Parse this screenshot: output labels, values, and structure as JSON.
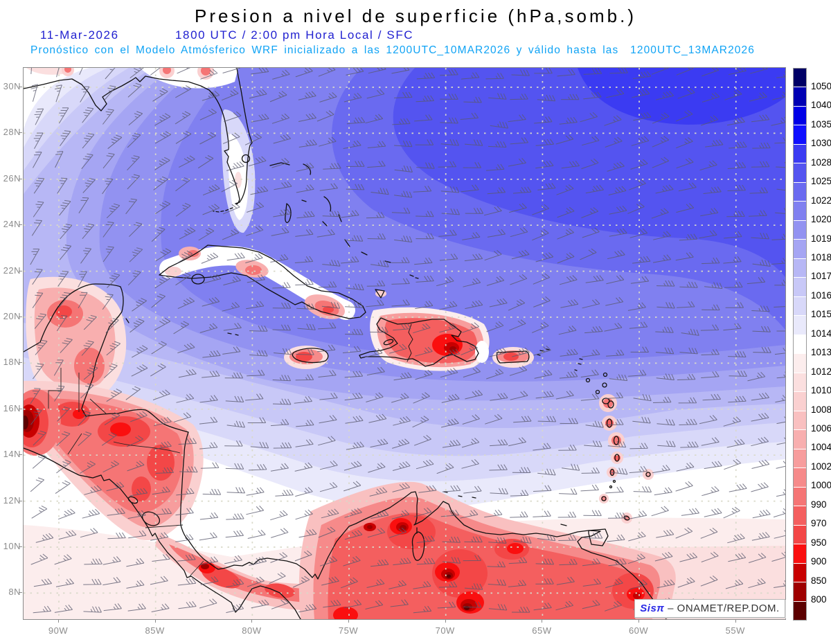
{
  "header": {
    "title": "Presion a nivel de superficie (hPa,somb.)",
    "date": "11-Mar-2026",
    "time_line": "1800 UTC / 2:00 pm Hora Local / SFC",
    "forecast_line": "Pronóstico con el Modelo Atmósferico WRF inicializado a las 1200UTC_10MAR2026 y válido hasta las  1200UTC_13MAR2026"
  },
  "axes": {
    "lat_labels": [
      "30N",
      "28N",
      "26N",
      "24N",
      "22N",
      "20N",
      "18N",
      "16N",
      "14N",
      "12N",
      "10N",
      "8N"
    ],
    "lon_labels": [
      "90W",
      "85W",
      "80W",
      "75W",
      "70W",
      "65W",
      "60W",
      "55W"
    ]
  },
  "colorbar": {
    "units": "hPa",
    "tick_labels": [
      "1050",
      "1040",
      "1035",
      "1030",
      "1028",
      "1025",
      "1022",
      "1020",
      "1019",
      "1018",
      "1017",
      "1016",
      "1015",
      "1014",
      "1013",
      "1012",
      "1010",
      "1008",
      "1006",
      "1004",
      "1002",
      "1000",
      "990",
      "970",
      "950",
      "900",
      "850",
      "800"
    ]
  },
  "palette": [
    "#000066",
    "#0000B3",
    "#0000E6",
    "#0F0FFF",
    "#3B3BF2",
    "#5454F0",
    "#6A6AF0",
    "#8080F0",
    "#9292F1",
    "#A5A5F3",
    "#B7B7F5",
    "#C8C8F7",
    "#D8D8F9",
    "#E9E9FB",
    "#FFFFFF",
    "#FCEDED",
    "#FBDFDF",
    "#FAD0D0",
    "#F9C0C0",
    "#F8AFAF",
    "#F79D9D",
    "#F68A8A",
    "#F57575",
    "#F45F5F",
    "#F34747",
    "#FA0F0F",
    "#C80000",
    "#9E0000",
    "#5C0000"
  ],
  "watermark": {
    "brand": "Sisπ",
    "org": " – ONAMET/REP.DOM."
  },
  "text_colors": {
    "title": "#000000",
    "date_line": "#1F1FD0",
    "forecast_line": "#0FA3F5",
    "axis": "#8C8C8C",
    "watermark_brand": "#2A2AE6",
    "watermark_org": "#333333",
    "barbs": "#5A5A6E",
    "gridlines": "#D9D9C9",
    "coastlines": "#111111"
  }
}
